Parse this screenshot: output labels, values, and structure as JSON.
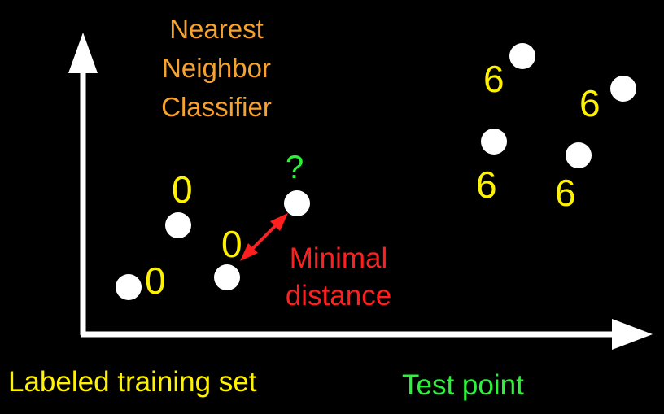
{
  "title": {
    "line1": "Nearest",
    "line2": "Neighbor",
    "line3": "Classifier"
  },
  "labels": {
    "cluster0": [
      "0",
      "0",
      "0"
    ],
    "cluster6": [
      "6",
      "6",
      "6",
      "6"
    ],
    "query": "?",
    "distance_line1": "Minimal",
    "distance_line2": "distance"
  },
  "legend": {
    "training": "Labeled training set",
    "test": "Test point"
  },
  "colors": {
    "title": "#F7A22F",
    "digit": "#FFF200",
    "test": "#2CF23A",
    "distance": "#FF1F1F",
    "point": "#FFFFFF",
    "axis": "#FFFFFF",
    "background": "#000000"
  }
}
